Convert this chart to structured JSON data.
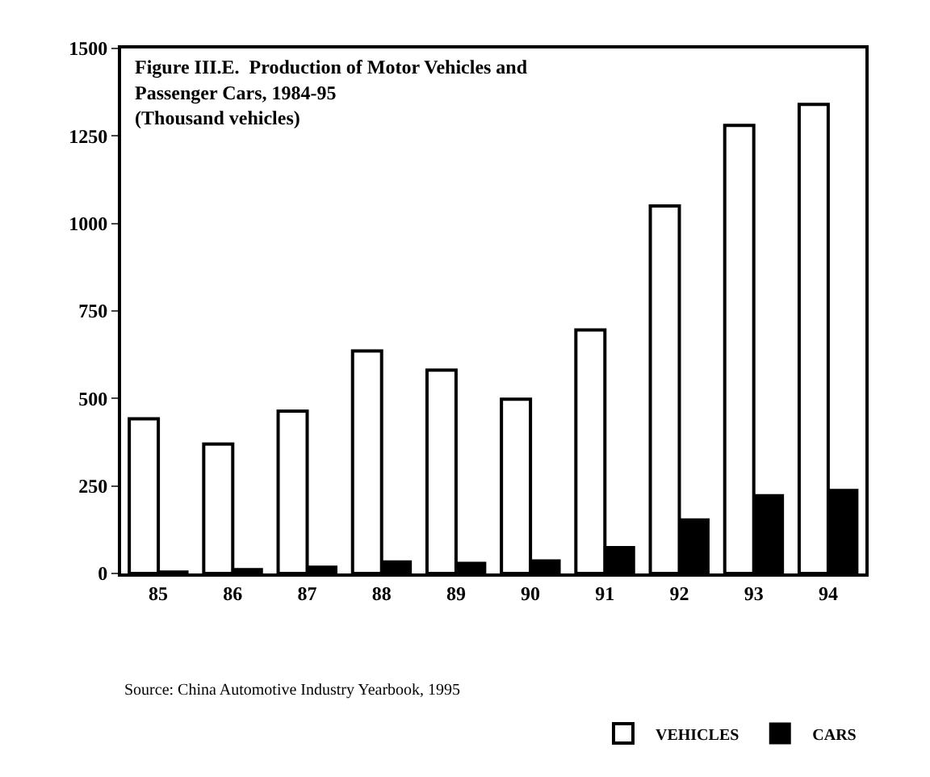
{
  "chart_data": {
    "type": "bar",
    "title": "Figure III.E.  Production of Motor Vehicles and\nPassenger Cars, 1984-95\n(Thousand vehicles)",
    "categories": [
      "85",
      "86",
      "87",
      "88",
      "89",
      "90",
      "91",
      "92",
      "93",
      "94"
    ],
    "series": [
      {
        "name": "VEHICLES",
        "color": "#ffffff",
        "values": [
          442,
          370,
          464,
          636,
          581,
          498,
          696,
          1050,
          1280,
          1340
        ]
      },
      {
        "name": "CARS",
        "color": "#000000",
        "values": [
          5,
          12,
          19,
          34,
          30,
          37,
          75,
          154,
          223,
          238
        ]
      }
    ],
    "ylim": [
      0,
      1500
    ],
    "yticks": [
      0,
      250,
      500,
      750,
      1000,
      1250,
      1500
    ],
    "grid": false,
    "legend": "bottom right",
    "annotations": [
      "Source: China Automotive Industry Yearbook, 1995"
    ]
  }
}
